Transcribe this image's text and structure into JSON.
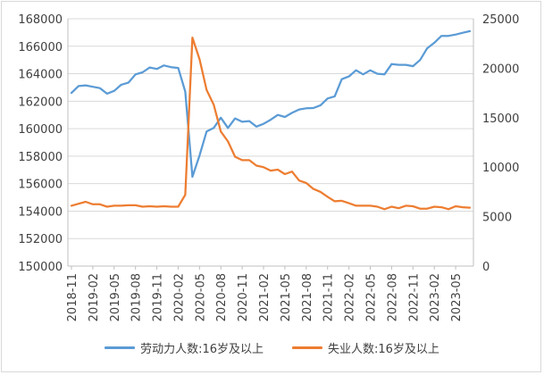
{
  "chart_data": {
    "type": "line",
    "title": "",
    "xlabel": "",
    "ylabel": "",
    "left_axis": {
      "ylim": [
        150000,
        168000
      ],
      "ticks": [
        150000,
        152000,
        154000,
        156000,
        158000,
        160000,
        162000,
        164000,
        166000,
        168000
      ]
    },
    "right_axis": {
      "ylim": [
        0,
        25000
      ],
      "ticks": [
        0,
        5000,
        10000,
        15000,
        20000,
        25000
      ]
    },
    "x_tick_labels": [
      "2018-11",
      "2019-02",
      "2019-05",
      "2019-08",
      "2019-11",
      "2020-02",
      "2020-05",
      "2020-08",
      "2020-11",
      "2021-02",
      "2021-05",
      "2021-08",
      "2021-11",
      "2022-02",
      "2022-05",
      "2022-08",
      "2022-11",
      "2023-02",
      "2023-05"
    ],
    "x": [
      "2018-11",
      "2018-12",
      "2019-01",
      "2019-02",
      "2019-03",
      "2019-04",
      "2019-05",
      "2019-06",
      "2019-07",
      "2019-08",
      "2019-09",
      "2019-10",
      "2019-11",
      "2019-12",
      "2020-01",
      "2020-02",
      "2020-03",
      "2020-04",
      "2020-05",
      "2020-06",
      "2020-07",
      "2020-08",
      "2020-09",
      "2020-10",
      "2020-11",
      "2020-12",
      "2021-01",
      "2021-02",
      "2021-03",
      "2021-04",
      "2021-05",
      "2021-06",
      "2021-07",
      "2021-08",
      "2021-09",
      "2021-10",
      "2021-11",
      "2021-12",
      "2022-01",
      "2022-02",
      "2022-03",
      "2022-04",
      "2022-05",
      "2022-06",
      "2022-07",
      "2022-08",
      "2022-09",
      "2022-10",
      "2022-11",
      "2022-12",
      "2023-01",
      "2023-02",
      "2023-03",
      "2023-04",
      "2023-05",
      "2023-06",
      "2023-07"
    ],
    "grid": true,
    "legend_position": "bottom",
    "series": [
      {
        "name": "劳动力人数:16岁及以上",
        "axis": "left",
        "color": "#5b9bd5",
        "values": [
          162600,
          163100,
          163150,
          163050,
          162950,
          162550,
          162750,
          163200,
          163350,
          163950,
          164100,
          164450,
          164350,
          164600,
          164480,
          164420,
          162700,
          156500,
          158050,
          159800,
          160050,
          160800,
          160050,
          160750,
          160500,
          160550,
          160150,
          160350,
          160650,
          161000,
          160850,
          161150,
          161400,
          161480,
          161500,
          161700,
          162200,
          162350,
          163600,
          163800,
          164250,
          163950,
          164250,
          164000,
          163950,
          164700,
          164650,
          164650,
          164550,
          165000,
          165850,
          166250,
          166750,
          166750,
          166850,
          166980,
          167100
        ]
      },
      {
        "name": "失业人数:16岁及以上",
        "axis": "right",
        "color": "#ed7d31",
        "values": [
          6100,
          6300,
          6500,
          6250,
          6250,
          6000,
          6100,
          6100,
          6150,
          6150,
          6000,
          6050,
          6000,
          6050,
          6000,
          6000,
          7200,
          23100,
          20900,
          17800,
          16300,
          13600,
          12600,
          11050,
          10700,
          10700,
          10150,
          10000,
          9650,
          9750,
          9300,
          9550,
          8650,
          8400,
          7800,
          7500,
          7000,
          6550,
          6600,
          6350,
          6100,
          6100,
          6100,
          6000,
          5750,
          6000,
          5850,
          6100,
          6050,
          5800,
          5800,
          6000,
          5950,
          5750,
          6050,
          5950,
          5900
        ]
      }
    ]
  }
}
